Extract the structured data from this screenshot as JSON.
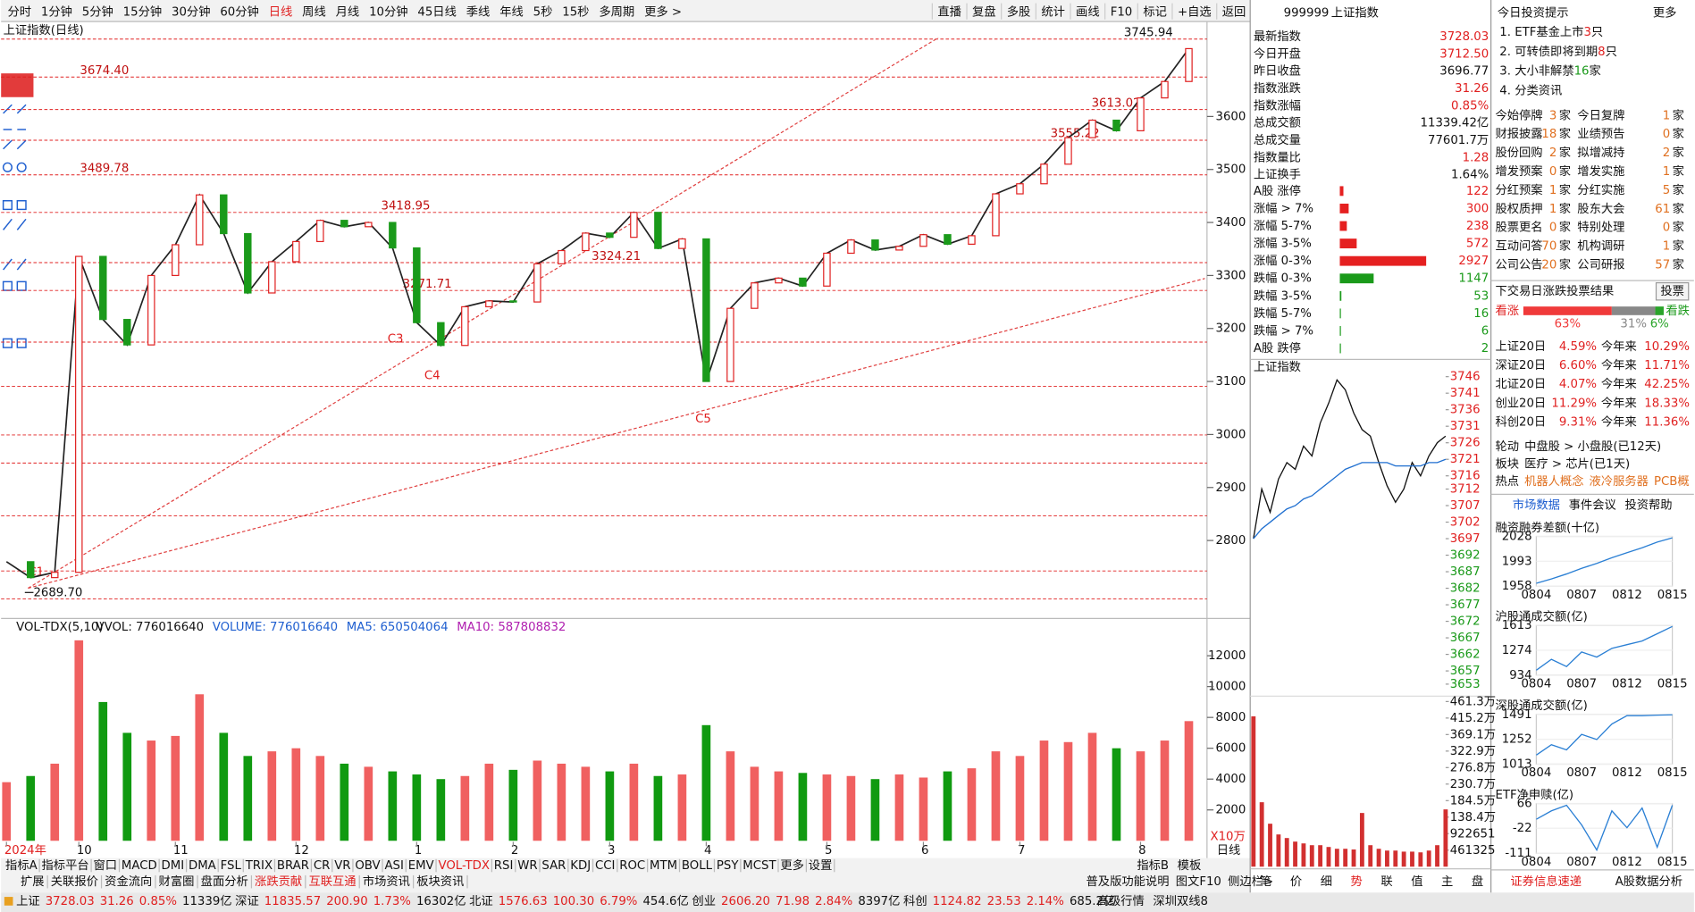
{
  "chart_data": [
    {
      "type": "line",
      "title": "上证指数(日线)",
      "categories": [
        "2024年",
        null,
        null,
        "10",
        null,
        null,
        null,
        "11",
        null,
        null,
        null,
        null,
        "12",
        null,
        null,
        null,
        null,
        "1",
        null,
        null,
        null,
        "2",
        null,
        null,
        null,
        "3",
        null,
        null,
        null,
        "4",
        null,
        null,
        null,
        null,
        "5",
        null,
        null,
        null,
        "6",
        null,
        null,
        null,
        "7",
        null,
        null,
        null,
        null,
        "8",
        null,
        null
      ],
      "series": [
        {
          "color": "#222222",
          "values": [
            2760,
            2730,
            2740,
            3336,
            3217,
            3169,
            3300,
            3358,
            3452,
            3379,
            3267,
            3326,
            3364,
            3404,
            3392,
            3400,
            3352,
            3211,
            3168,
            3241,
            3252,
            3250,
            3322,
            3347,
            3380,
            3372,
            3419,
            3351,
            3369,
            3100,
            3238,
            3286,
            3295,
            3280,
            3342,
            3367,
            3348,
            3355,
            3377,
            3359,
            3375,
            3454,
            3473,
            3510,
            3560,
            3593,
            3573,
            3635,
            3666,
            3728
          ]
        }
      ],
      "ylim": [
        2655,
        3779
      ],
      "yticks": [
        2800,
        2900,
        3000,
        3100,
        3200,
        3300,
        3400,
        3500,
        3600
      ],
      "annotations": [
        {
          "value": 3674.4,
          "label": "3674.40"
        },
        {
          "value": 3489.78,
          "label": "3489.78"
        },
        {
          "value": 3418.95,
          "label": "3418.95"
        },
        {
          "value": 3271.71,
          "label": "3271.71"
        },
        {
          "value": 3324.21,
          "label": "3324.21"
        },
        {
          "value": 3555.22,
          "label": "3555.22"
        },
        {
          "value": 3613.02,
          "label": "3613.02"
        },
        {
          "value": 3745.94,
          "label": "3745.94"
        },
        {
          "value": 2689.7,
          "label": "2689.70"
        }
      ],
      "markers": [
        "C1",
        "C3",
        "C4",
        "C5"
      ],
      "x_axis_label": "日线",
      "level_color": "#e02020"
    },
    {
      "type": "bar",
      "title": "VOL-TDX(5,10)",
      "legend_texts": [
        "VVOL: 776016640",
        "VOLUME: 776016640",
        "MA5: 650504064",
        "MA10: 587808832"
      ],
      "unit": "X10万",
      "values": [
        3800,
        4200,
        5000,
        13000,
        9000,
        7000,
        6500,
        6800,
        9500,
        7000,
        5500,
        5800,
        6000,
        5500,
        5000,
        4800,
        4500,
        4300,
        4000,
        4200,
        5000,
        4600,
        5200,
        5000,
        4800,
        4500,
        5000,
        4200,
        4300,
        7500,
        5800,
        4800,
        4500,
        4400,
        4300,
        4200,
        4000,
        4300,
        4100,
        4500,
        4700,
        5800,
        5500,
        6500,
        6400,
        7000,
        6000,
        5800,
        6500,
        7760
      ],
      "up_color": "#f06060",
      "down_color": "#109a10",
      "ylim": [
        0,
        14000
      ],
      "yticks": [
        2000,
        4000,
        6000,
        8000,
        10000,
        12000
      ]
    },
    {
      "type": "line",
      "title": "上证指数",
      "categories": [
        null,
        null,
        null,
        null,
        null,
        null,
        null,
        null,
        null,
        null,
        null,
        null,
        null,
        null,
        null,
        null,
        null,
        null,
        null,
        null,
        null,
        null,
        null,
        null
      ],
      "series": [
        {
          "color": "#111111",
          "values": [
            3697,
            3712,
            3705,
            3715,
            3720,
            3718,
            3725,
            3722,
            3732,
            3738,
            3745,
            3742,
            3735,
            3730,
            3728,
            3720,
            3713,
            3708,
            3712,
            3720,
            3716,
            3722,
            3726,
            3728
          ]
        },
        {
          "color": "#1f6fd0",
          "values": [
            3697,
            3700,
            3702,
            3704,
            3706,
            3707,
            3709,
            3710,
            3712,
            3714,
            3716,
            3718,
            3719,
            3720,
            3720,
            3720,
            3720,
            3719,
            3719,
            3719,
            3719,
            3720,
            3720,
            3721
          ]
        },
        {
          "color": "#d23030",
          "axis": "y2",
          "values": [
            4200000,
            1800000,
            1200000,
            900000,
            800000,
            700000,
            650000,
            600000,
            600000,
            550000,
            500000,
            500000,
            480000,
            1500000,
            600000,
            500000,
            450000,
            450000,
            420000,
            420000,
            400000,
            450000,
            600000,
            1600000
          ]
        }
      ],
      "ylim": [
        3651,
        3747.3
      ],
      "yticks": [
        3653,
        3657,
        3662,
        3667,
        3672,
        3677,
        3682,
        3687,
        3692,
        3697,
        3702,
        3707,
        3712,
        3716,
        3721,
        3726,
        3731,
        3736,
        3741,
        3746
      ],
      "y2lim": [
        0,
        4613000
      ],
      "y2ticks": [
        {
          "value": 4613000,
          "label": "461.3万"
        },
        {
          "value": 4152000,
          "label": "415.2万"
        },
        {
          "value": 3691000,
          "label": "369.1万"
        },
        {
          "value": 3229000,
          "label": "322.9万"
        },
        {
          "value": 2768000,
          "label": "276.8万"
        },
        {
          "value": 2307000,
          "label": "230.7万"
        },
        {
          "value": 1845000,
          "label": "184.5万"
        },
        {
          "value": 1384000,
          "label": "138.4万"
        },
        922651,
        461325
      ]
    },
    {
      "type": "hbar",
      "categories": [
        "A股 涨停",
        "涨幅 > 7%",
        "涨幅 5-7%",
        "涨幅 3-5%",
        "涨幅 0-3%",
        "跌幅 0-3%",
        "跌幅 3-5%",
        "跌幅 5-7%",
        "跌幅 > 7%",
        "A股 跌停"
      ],
      "values": [
        122,
        300,
        238,
        572,
        2927,
        1147,
        53,
        16,
        6,
        2
      ],
      "colors": [
        "#e52020",
        "#e52020",
        "#e52020",
        "#e52020",
        "#e52020",
        "#1a9a1a",
        "#1a9a1a",
        "#1a9a1a",
        "#1a9a1a",
        "#1a9a1a"
      ],
      "xlim": [
        0,
        2927
      ]
    },
    {
      "type": "stacked",
      "title": "下交易日涨跌投票结果",
      "button": "投票",
      "left_label": "看涨",
      "right_label": "看跌",
      "values": [
        63,
        31,
        6
      ],
      "value_labels": [
        "63%",
        "31%",
        "6%"
      ],
      "colors": [
        "#f03a3a",
        "#888888",
        "#2aa52a"
      ],
      "xlim": [
        0,
        100
      ]
    },
    {
      "type": "line",
      "title": "融资融券差额(十亿)",
      "categories": [
        "0804",
        null,
        null,
        "0807",
        null,
        null,
        "0812",
        null,
        null,
        "0815"
      ],
      "series": [
        {
          "color": "#2a7fd4",
          "values": [
            1962,
            1968,
            1975,
            1983,
            1990,
            1998,
            2005,
            2012,
            2020,
            2026
          ]
        }
      ],
      "ylim": [
        1958,
        2028
      ],
      "yticks": [
        1958,
        1993,
        2028
      ]
    },
    {
      "type": "line",
      "title": "沪股通成交额(亿)",
      "categories": [
        "0804",
        null,
        null,
        "0807",
        null,
        null,
        "0812",
        null,
        null,
        "0815"
      ],
      "series": [
        {
          "color": "#2a7fd4",
          "values": [
            1000,
            1150,
            1050,
            1250,
            1180,
            1300,
            1350,
            1400,
            1500,
            1600
          ]
        }
      ],
      "ylim": [
        934,
        1613
      ],
      "yticks": [
        934,
        1274,
        1613
      ]
    },
    {
      "type": "line",
      "title": "深股通成交额(亿)",
      "categories": [
        "0804",
        null,
        null,
        "0807",
        null,
        null,
        "0812",
        null,
        null,
        "0815"
      ],
      "series": [
        {
          "color": "#2a7fd4",
          "values": [
            1100,
            1200,
            1150,
            1300,
            1250,
            1400,
            1480,
            1480,
            1485,
            1488
          ]
        }
      ],
      "ylim": [
        1013,
        1491
      ],
      "yticks": [
        1013,
        1252,
        1491
      ]
    },
    {
      "type": "line",
      "title": "ETF净申赎(亿)",
      "categories": [
        "0804",
        null,
        null,
        "0807",
        null,
        null,
        "0812",
        null,
        null,
        "0815"
      ],
      "series": [
        {
          "color": "#2a7fd4",
          "values": [
            10,
            40,
            60,
            -10,
            -100,
            40,
            -20,
            50,
            -90,
            60
          ]
        }
      ],
      "ylim": [
        -111,
        66
      ],
      "yticks": [
        -111,
        -22,
        66
      ]
    }
  ],
  "ui": {
    "periods": [
      "分时",
      "1分钟",
      "5分钟",
      "15分钟",
      "30分钟",
      "60分钟",
      "日线",
      "周线",
      "月线",
      "10分钟",
      "45日线",
      "季线",
      "年线",
      "5秒",
      "15秒",
      "多周期",
      "更多 >"
    ],
    "active_period": 6,
    "tools": [
      "直播",
      "复盘",
      "多股",
      "统计",
      "画线",
      "F10",
      "标记",
      "+自选",
      "返回"
    ],
    "indicator_tabs": [
      "指标A",
      "指标平台",
      "窗口",
      "MACD",
      "DMI",
      "DMA",
      "FSL",
      "TRIX",
      "BRAR",
      "CR",
      "VR",
      "OBV",
      "ASI",
      "EMV",
      "VOL-TDX",
      "RSI",
      "WR",
      "SAR",
      "KDJ",
      "CCI",
      "ROC",
      "MTM",
      "BOLL",
      "PSY",
      "MCST",
      "更多",
      "设置"
    ],
    "active_indicator": 14,
    "indicator_right": [
      "指标B",
      "模板"
    ],
    "ext_tabs": [
      "扩展",
      "关联报价",
      "资金流向",
      "财富圈",
      "盘面分析",
      "涨跌贡献",
      "互联互通",
      "市场资讯",
      "板块资讯"
    ],
    "ext_highlight": [
      5,
      6
    ],
    "ext_right": [
      "普及版功能说明",
      "图文F10",
      "侧边栏>"
    ],
    "status": [
      [
        "上证",
        "3728.03",
        "31.26",
        "0.85%",
        "11339亿"
      ],
      [
        "深证",
        "11835.57",
        "200.90",
        "1.73%",
        "16302亿"
      ],
      [
        "北证",
        "1576.63",
        "100.30",
        "6.79%",
        "454.6亿"
      ],
      [
        "创业",
        "2606.20",
        "71.98",
        "2.84%",
        "8397亿"
      ],
      [
        "科创",
        "1124.82",
        "23.53",
        "2.14%",
        "685.2亿"
      ]
    ],
    "status_right": [
      "高级行情",
      "深圳双线8"
    ],
    "quote": {
      "code": "999999",
      "name": "上证指数",
      "rows": [
        {
          "label": "最新指数",
          "value": "3728.03",
          "color": "#e02020"
        },
        {
          "label": "今日开盘",
          "value": "3712.50",
          "color": "#e02020"
        },
        {
          "label": "昨日收盘",
          "value": "3696.77",
          "color": "#111111"
        },
        {
          "label": "指数涨跌",
          "value": "31.26",
          "color": "#e02020"
        },
        {
          "label": "指数涨幅",
          "value": "0.85%",
          "color": "#e02020"
        },
        {
          "label": "总成交额",
          "value": "11339.42亿",
          "color": "#111111"
        },
        {
          "label": "总成交量",
          "value": "77601.7万",
          "color": "#111111"
        },
        {
          "label": "指数量比",
          "value": "1.28",
          "color": "#e02020"
        },
        {
          "label": "上证换手",
          "value": "1.64%",
          "color": "#111111"
        }
      ]
    },
    "mini_tabs": [
      "笔",
      "价",
      "细",
      "势",
      "联",
      "值",
      "主",
      "盘"
    ],
    "tips": {
      "title": "今日投资提示",
      "more": "更多",
      "items": [
        [
          "1. ETF基金上市",
          "3",
          "只"
        ],
        [
          "2. 可转债即将到期",
          "8",
          "只"
        ],
        [
          "3. 大小非解禁 ",
          "16",
          " 家"
        ],
        [
          "4. 分类资讯"
        ]
      ]
    },
    "events": [
      [
        "今始停牌",
        "3",
        "家",
        "今日复牌",
        "1",
        "家"
      ],
      [
        "财报披露",
        "18",
        "家",
        "业绩预告",
        "0",
        "家"
      ],
      [
        "股份回购",
        "2",
        "家",
        "拟增减持",
        "2",
        "家"
      ],
      [
        "增发预案",
        "0",
        "家",
        "增发实施",
        "1",
        "家"
      ],
      [
        "分红预案",
        "1",
        "家",
        "分红实施",
        "5",
        "家"
      ],
      [
        "股权质押",
        "1",
        "家",
        "股东大会",
        "61",
        "家"
      ],
      [
        "股票更名",
        "0",
        "家",
        "特别处理",
        "0",
        "家"
      ],
      [
        "互动问答",
        "70",
        "家",
        "机构调研",
        "1",
        "家"
      ],
      [
        "公司公告",
        "20",
        "家",
        "公司研报",
        "57",
        "家"
      ]
    ],
    "perf": [
      [
        "上证20日",
        "4.59%",
        "今年来",
        "10.29%"
      ],
      [
        "深证20日",
        "6.60%",
        "今年来",
        "11.71%"
      ],
      [
        "北证20日",
        "4.07%",
        "今年来",
        "42.25%"
      ],
      [
        "创业20日",
        "11.29%",
        "今年来",
        "18.33%"
      ],
      [
        "科创20日",
        "9.31%",
        "今年来",
        "11.36%"
      ]
    ],
    "rotation": [
      [
        "轮动",
        "中盘股 > 小盘股(已12天)"
      ],
      [
        "板块",
        "医疗 > 芯片(已1天)"
      ],
      [
        "热点",
        "机器人概念",
        "液冷服务器",
        "PCB概"
      ]
    ],
    "data_tabs": [
      "市场数据",
      "事件会议",
      "投资帮助"
    ],
    "footer_tabs": [
      "证券信息速递",
      "A股数据分析"
    ]
  }
}
